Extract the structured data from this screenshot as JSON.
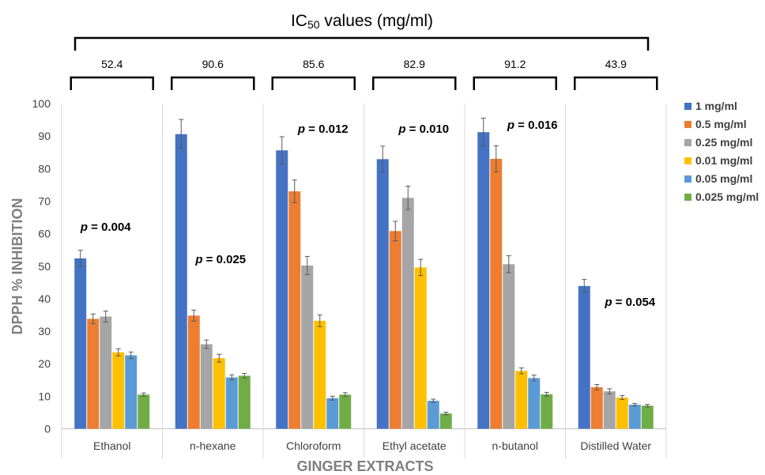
{
  "chart_data": {
    "type": "bar",
    "title": "IC50 values (mg/ml)",
    "title_main": "IC",
    "title_sub": "50",
    "title_rest": " values (mg/ml)",
    "xlabel": "GINGER EXTRACTS",
    "ylabel": "DPPH % INHIBITION",
    "ylim": [
      0,
      100
    ],
    "yticks": [
      "0",
      "10",
      "20",
      "30",
      "40",
      "50",
      "60",
      "70",
      "80",
      "90",
      "100"
    ],
    "categories": [
      "Ethanol",
      "n-hexane",
      "Chloroform",
      "Ethyl acetate",
      "n-butanol",
      "Distilled Water"
    ],
    "ic50": [
      "52.4",
      "90.6",
      "85.6",
      "82.9",
      "91.2",
      "43.9"
    ],
    "p_values": [
      "0.004",
      "0.025",
      "0.012",
      "0.010",
      "0.016",
      "0.054"
    ],
    "p_prefix": "p",
    "p_eq": " = ",
    "legend_position": "right",
    "grid": false,
    "series": [
      {
        "name": "1 mg/ml",
        "color": "#4472C4",
        "values": [
          52.4,
          90.6,
          85.6,
          82.9,
          91.2,
          43.9
        ],
        "errors": [
          2.5,
          4.5,
          4.2,
          4.0,
          4.3,
          2.0
        ]
      },
      {
        "name": "0.5 mg/ml",
        "color": "#ED7D31",
        "values": [
          33.8,
          34.8,
          73.0,
          60.8,
          83.0,
          12.8
        ],
        "errors": [
          1.5,
          1.7,
          3.5,
          3.0,
          4.0,
          0.8
        ]
      },
      {
        "name": "0.25 mg/ml",
        "color": "#A5A5A5",
        "values": [
          34.5,
          26.0,
          50.2,
          71.0,
          50.6,
          11.5
        ],
        "errors": [
          1.7,
          1.3,
          2.8,
          3.6,
          2.6,
          0.8
        ]
      },
      {
        "name": "0.01 mg/ml",
        "color": "#FFC000",
        "values": [
          23.5,
          21.7,
          33.2,
          49.6,
          17.8,
          9.6
        ],
        "errors": [
          1.1,
          1.2,
          1.8,
          2.5,
          0.9,
          0.6
        ]
      },
      {
        "name": "0.05 mg/ml",
        "color": "#5B9BD5",
        "values": [
          22.6,
          15.8,
          9.4,
          8.6,
          15.6,
          7.4
        ],
        "errors": [
          1.0,
          0.8,
          0.6,
          0.5,
          0.9,
          0.4
        ]
      },
      {
        "name": "0.025 mg/ml",
        "color": "#70AD47",
        "values": [
          10.5,
          16.3,
          10.5,
          4.7,
          10.6,
          7.1
        ],
        "errors": [
          0.5,
          0.7,
          0.6,
          0.4,
          0.6,
          0.4
        ]
      }
    ]
  }
}
